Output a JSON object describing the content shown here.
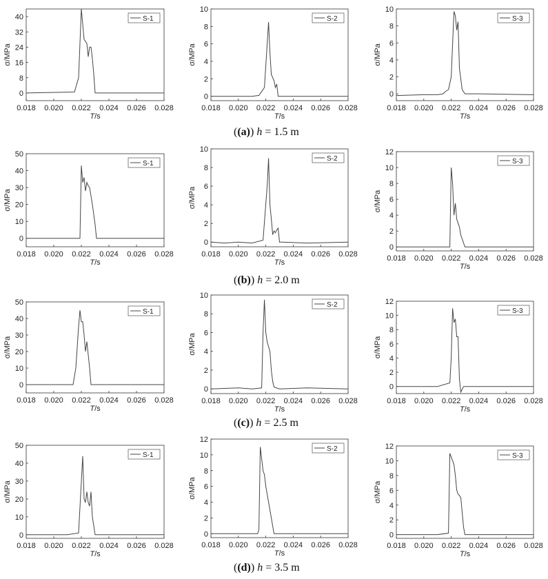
{
  "chart_data": [
    {
      "type": "line",
      "panel": "a",
      "series": [
        {
          "name": "S-1",
          "x": [
            0.018,
            0.0215,
            0.0218,
            0.022,
            0.0221,
            0.0222,
            0.0223,
            0.0224,
            0.0225,
            0.0226,
            0.0227,
            0.0228,
            0.0229,
            0.023,
            0.0232,
            0.025,
            0.028
          ],
          "y": [
            0,
            0.5,
            8,
            44,
            36,
            28,
            27,
            26,
            19,
            24,
            24,
            18,
            10,
            0,
            0,
            0,
            0
          ]
        }
      ],
      "xlim": [
        0.018,
        0.028
      ],
      "xticks": [
        "0.018",
        "0.020",
        "0.022",
        "0.024",
        "0.026",
        "0.028"
      ],
      "ylim": [
        -4,
        44
      ],
      "yticks": [
        "0",
        "8",
        "16",
        "24",
        "32",
        "40"
      ],
      "xlabel": "T/s",
      "ylabel": "σ/MPa"
    },
    {
      "type": "line",
      "panel": "a",
      "series": [
        {
          "name": "S-2",
          "x": [
            0.018,
            0.0205,
            0.021,
            0.0215,
            0.0219,
            0.0221,
            0.0222,
            0.0223,
            0.0224,
            0.0226,
            0.0227,
            0.0228,
            0.0229,
            0.0231,
            0.025,
            0.028
          ],
          "y": [
            0,
            0,
            0,
            0.1,
            1,
            6,
            8.5,
            5,
            2.5,
            1.8,
            1,
            1.4,
            0,
            0,
            0,
            0
          ]
        }
      ],
      "xlim": [
        0.018,
        0.028
      ],
      "xticks": [
        "0.018",
        "0.020",
        "0.022",
        "0.024",
        "0.026",
        "0.028"
      ],
      "ylim": [
        -0.5,
        10
      ],
      "yticks": [
        "0",
        "2",
        "4",
        "6",
        "8",
        "10"
      ],
      "xlabel": "T/s",
      "ylabel": "σ/MPa"
    },
    {
      "type": "line",
      "panel": "a",
      "series": [
        {
          "name": "S-3",
          "x": [
            0.018,
            0.02,
            0.021,
            0.0214,
            0.0216,
            0.0218,
            0.022,
            0.0222,
            0.0223,
            0.0224,
            0.0225,
            0.0226,
            0.0228,
            0.023,
            0.024,
            0.028
          ],
          "y": [
            -0.2,
            -0.1,
            -0.1,
            0,
            0.3,
            0.5,
            2,
            9.7,
            9.2,
            7.5,
            8.5,
            3,
            0.5,
            0,
            0,
            -0.1
          ]
        }
      ],
      "xlim": [
        0.018,
        0.028
      ],
      "xticks": [
        "0.018",
        "0.020",
        "0.022",
        "0.024",
        "0.026",
        "0.028"
      ],
      "ylim": [
        -0.8,
        10
      ],
      "yticks": [
        "0",
        "2",
        "4",
        "6",
        "8",
        "10"
      ],
      "xlabel": "T/s",
      "ylabel": "σ/MPa"
    },
    {
      "type": "line",
      "panel": "b",
      "series": [
        {
          "name": "S-1",
          "x": [
            0.018,
            0.0219,
            0.022,
            0.0221,
            0.0222,
            0.0223,
            0.0224,
            0.0225,
            0.0226,
            0.0228,
            0.023,
            0.0231,
            0.028
          ],
          "y": [
            0,
            0,
            43,
            33,
            36,
            28,
            33,
            31,
            30,
            20,
            8,
            0,
            0
          ]
        }
      ],
      "xlim": [
        0.018,
        0.028
      ],
      "xticks": [
        "0.018",
        "0.020",
        "0.022",
        "0.024",
        "0.026",
        "0.028"
      ],
      "ylim": [
        -5,
        50
      ],
      "yticks": [
        "0",
        "10",
        "20",
        "30",
        "40",
        "50"
      ],
      "xlabel": "T/s",
      "ylabel": "σ/MPa"
    },
    {
      "type": "line",
      "panel": "b",
      "series": [
        {
          "name": "S-2",
          "x": [
            0.018,
            0.019,
            0.02,
            0.021,
            0.0218,
            0.0221,
            0.0222,
            0.0223,
            0.0224,
            0.0225,
            0.0226,
            0.0227,
            0.0228,
            0.0229,
            0.023,
            0.0232,
            0.025,
            0.028
          ],
          "y": [
            0,
            -0.1,
            0,
            -0.1,
            0.2,
            6,
            9,
            4,
            2.5,
            0.8,
            1.2,
            1,
            1.3,
            1.5,
            0,
            0,
            -0.1,
            0
          ]
        }
      ],
      "xlim": [
        0.018,
        0.028
      ],
      "xticks": [
        "0.018",
        "0.020",
        "0.022",
        "0.024",
        "0.026",
        "0.028"
      ],
      "ylim": [
        -0.5,
        10
      ],
      "yticks": [
        "0",
        "2",
        "4",
        "6",
        "8",
        "10"
      ],
      "xlabel": "T/s",
      "ylabel": "σ/MPa"
    },
    {
      "type": "line",
      "panel": "b",
      "series": [
        {
          "name": "S-3",
          "x": [
            0.018,
            0.0219,
            0.022,
            0.0221,
            0.0222,
            0.0223,
            0.0224,
            0.0225,
            0.0226,
            0.0227,
            0.0229,
            0.023,
            0.028
          ],
          "y": [
            0,
            0,
            10,
            8,
            4,
            5.5,
            3.5,
            3,
            2.5,
            1.5,
            0.5,
            0,
            0
          ]
        }
      ],
      "xlim": [
        0.018,
        0.028
      ],
      "xticks": [
        "0.018",
        "0.020",
        "0.022",
        "0.024",
        "0.026",
        "0.028"
      ],
      "ylim": [
        -0.5,
        12
      ],
      "yticks": [
        "0",
        "2",
        "4",
        "6",
        "8",
        "10",
        "12"
      ],
      "xlabel": "T/s",
      "ylabel": "σ/MPa"
    },
    {
      "type": "line",
      "panel": "c",
      "series": [
        {
          "name": "S-1",
          "x": [
            0.018,
            0.0214,
            0.0216,
            0.0218,
            0.0219,
            0.022,
            0.0221,
            0.0222,
            0.0223,
            0.0224,
            0.0225,
            0.0226,
            0.0227,
            0.028
          ],
          "y": [
            0,
            0,
            10,
            35,
            45,
            38,
            38,
            30,
            20,
            26,
            18,
            10,
            0,
            0
          ]
        }
      ],
      "xlim": [
        0.018,
        0.028
      ],
      "xticks": [
        "0.018",
        "0.020",
        "0.022",
        "0.024",
        "0.026",
        "0.028"
      ],
      "ylim": [
        -5,
        50
      ],
      "yticks": [
        "0",
        "10",
        "20",
        "30",
        "40",
        "50"
      ],
      "xlabel": "T/s",
      "ylabel": "σ/MPa"
    },
    {
      "type": "line",
      "panel": "c",
      "series": [
        {
          "name": "S-2",
          "x": [
            0.018,
            0.02,
            0.021,
            0.0217,
            0.0218,
            0.0219,
            0.022,
            0.0221,
            0.0222,
            0.0223,
            0.0224,
            0.0225,
            0.0226,
            0.023,
            0.025,
            0.028
          ],
          "y": [
            0,
            0.1,
            0,
            0.1,
            6,
            9.5,
            6,
            5,
            4.5,
            4,
            2,
            0.8,
            0.2,
            0,
            0.1,
            0
          ]
        }
      ],
      "xlim": [
        0.018,
        0.028
      ],
      "xticks": [
        "0.018",
        "0.020",
        "0.022",
        "0.024",
        "0.026",
        "0.028"
      ],
      "ylim": [
        -0.5,
        10
      ],
      "yticks": [
        "0",
        "2",
        "4",
        "6",
        "8",
        "10"
      ],
      "xlabel": "T/s",
      "ylabel": "σ/MPa"
    },
    {
      "type": "line",
      "panel": "c",
      "series": [
        {
          "name": "S-3",
          "x": [
            0.018,
            0.021,
            0.0219,
            0.022,
            0.0221,
            0.0222,
            0.0223,
            0.0224,
            0.0225,
            0.0226,
            0.0227,
            0.0229,
            0.025,
            0.028
          ],
          "y": [
            0,
            0,
            0.5,
            4,
            11,
            9,
            9.5,
            7,
            7,
            1,
            -0.8,
            0,
            0,
            0
          ]
        }
      ],
      "xlim": [
        0.018,
        0.028
      ],
      "xticks": [
        "0.018",
        "0.020",
        "0.022",
        "0.024",
        "0.026",
        "0.028"
      ],
      "ylim": [
        -1,
        12
      ],
      "yticks": [
        "0",
        "2",
        "4",
        "6",
        "8",
        "10",
        "12"
      ],
      "xlabel": "T/s",
      "ylabel": "σ/MPa"
    },
    {
      "type": "line",
      "panel": "d",
      "series": [
        {
          "name": "S-1",
          "x": [
            0.018,
            0.021,
            0.0218,
            0.0221,
            0.0222,
            0.0223,
            0.0224,
            0.0225,
            0.0226,
            0.0227,
            0.0228,
            0.023,
            0.028
          ],
          "y": [
            0,
            0,
            1,
            44,
            20,
            18,
            24,
            18,
            16,
            24,
            10,
            0,
            0
          ]
        }
      ],
      "xlim": [
        0.018,
        0.028
      ],
      "xticks": [
        "0.018",
        "0.020",
        "0.022",
        "0.024",
        "0.026",
        "0.028"
      ],
      "ylim": [
        -2,
        50
      ],
      "yticks": [
        "0",
        "10",
        "20",
        "30",
        "40",
        "50"
      ],
      "xlabel": "T/s",
      "ylabel": "σ/MPa"
    },
    {
      "type": "line",
      "panel": "d",
      "series": [
        {
          "name": "S-2",
          "x": [
            0.018,
            0.0214,
            0.0215,
            0.0216,
            0.0217,
            0.0218,
            0.0219,
            0.022,
            0.0221,
            0.0222,
            0.0224,
            0.0226,
            0.028
          ],
          "y": [
            0,
            0,
            0.5,
            11,
            9.5,
            8,
            7.5,
            6,
            5,
            4,
            2,
            0,
            0
          ]
        }
      ],
      "xlim": [
        0.018,
        0.028
      ],
      "xticks": [
        "0.018",
        "0.020",
        "0.022",
        "0.024",
        "0.026",
        "0.028"
      ],
      "ylim": [
        -0.5,
        12
      ],
      "yticks": [
        "0",
        "2",
        "4",
        "6",
        "8",
        "10",
        "12"
      ],
      "xlabel": "T/s",
      "ylabel": "σ/MPa"
    },
    {
      "type": "line",
      "panel": "d",
      "series": [
        {
          "name": "S-3",
          "x": [
            0.018,
            0.021,
            0.0218,
            0.0219,
            0.022,
            0.0221,
            0.0222,
            0.0223,
            0.0224,
            0.0225,
            0.0226,
            0.0227,
            0.0229,
            0.023,
            0.025,
            0.028
          ],
          "y": [
            0,
            0,
            0.2,
            11,
            10.5,
            10,
            9.5,
            8,
            6,
            5.5,
            5.3,
            5,
            1,
            0,
            0,
            0
          ]
        }
      ],
      "xlim": [
        0.018,
        0.028
      ],
      "xticks": [
        "0.018",
        "0.020",
        "0.022",
        "0.024",
        "0.026",
        "0.028"
      ],
      "ylim": [
        -0.5,
        12
      ],
      "yticks": [
        "0",
        "2",
        "4",
        "6",
        "8",
        "10",
        "12"
      ],
      "xlabel": "T/s",
      "ylabel": "σ/MPa"
    }
  ],
  "captions": [
    {
      "label": "(a)",
      "italic": "h",
      "rest": " = 1.5 m"
    },
    {
      "label": "(b)",
      "italic": "h",
      "rest": " = 2.0 m"
    },
    {
      "label": "(c)",
      "italic": "h",
      "rest": " = 2.5 m"
    },
    {
      "label": "(d)",
      "italic": "h",
      "rest": " = 3.5 m"
    }
  ],
  "colors": {
    "line": "#444444",
    "axis": "#333333"
  }
}
